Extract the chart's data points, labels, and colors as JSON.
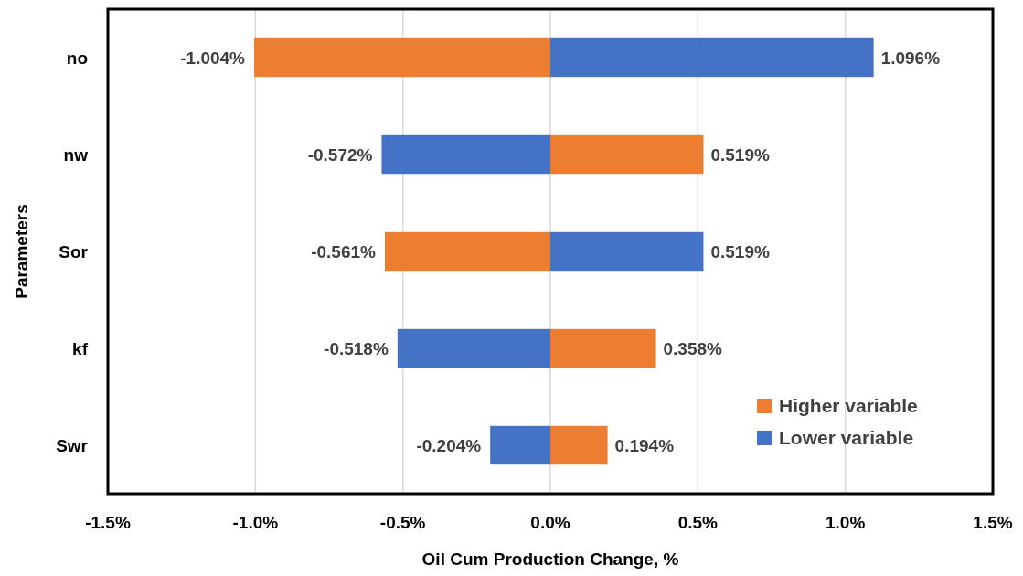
{
  "chart_data": {
    "type": "bar",
    "orientation": "horizontal",
    "stacked": true,
    "xlabel": "Oil Cum Production Change, %",
    "ylabel": "Parameters",
    "categories": [
      "no",
      "nw",
      "Sor",
      "kf",
      "Swr"
    ],
    "series": [
      {
        "name": "Higher variable",
        "color": "#ed7d31",
        "values": [
          -1.004,
          0.519,
          -0.561,
          0.358,
          0.194
        ],
        "value_labels": [
          "-1.004%",
          "0.519%",
          "-0.561%",
          "0.358%",
          "0.194%"
        ]
      },
      {
        "name": "Lower variable",
        "color": "#4472c4",
        "values": [
          1.096,
          -0.572,
          0.519,
          -0.518,
          -0.204
        ],
        "value_labels": [
          "1.096%",
          "-0.572%",
          "0.519%",
          "-0.518%",
          "-0.204%"
        ]
      }
    ],
    "xlim": [
      -1.5,
      1.5
    ],
    "xticks": [
      {
        "value": -1.5,
        "label": "-1.5%"
      },
      {
        "value": -1,
        "label": "-1.0%"
      },
      {
        "value": -0.5,
        "label": "-0.5%"
      },
      {
        "value": 0,
        "label": "0.0%"
      },
      {
        "value": 0.5,
        "label": "0.5%"
      },
      {
        "value": 1,
        "label": "1.0%"
      },
      {
        "value": 1.5,
        "label": "1.5%"
      }
    ],
    "grid": "x",
    "legend": "bottom right"
  }
}
